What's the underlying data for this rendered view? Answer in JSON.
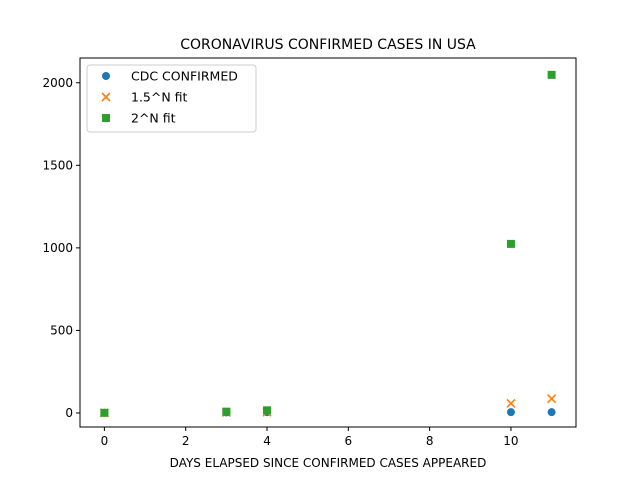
{
  "chart_data": {
    "type": "scatter",
    "title": "CORONAVIRUS CONFIRMED CASES IN USA",
    "xlabel": "DAYS ELAPSED SINCE CONFIRMED CASES APPEARED",
    "ylabel": "",
    "xlim": [
      -0.6,
      11.6
    ],
    "ylim": [
      -85,
      2150
    ],
    "xticks": [
      0,
      2,
      4,
      6,
      8,
      10
    ],
    "yticks": [
      0,
      500,
      1000,
      1500,
      2000
    ],
    "grid": false,
    "legend_position": "top-left",
    "series": [
      {
        "name": "CDC CONFIRMED",
        "marker": "circle",
        "color": "#1f77b4",
        "x": [
          0,
          3,
          4,
          10,
          11
        ],
        "y": [
          1,
          3,
          5,
          5,
          5
        ]
      },
      {
        "name": "1.5^N fit",
        "marker": "x",
        "color": "#ff7f0e",
        "x": [
          0,
          3,
          4,
          10,
          11
        ],
        "y": [
          1,
          3.375,
          5.0625,
          57.67,
          86.5
        ]
      },
      {
        "name": "2^N fit",
        "marker": "square",
        "color": "#2ca02c",
        "x": [
          0,
          3,
          4,
          10,
          11
        ],
        "y": [
          1,
          8,
          16,
          1024,
          2048
        ]
      }
    ]
  }
}
